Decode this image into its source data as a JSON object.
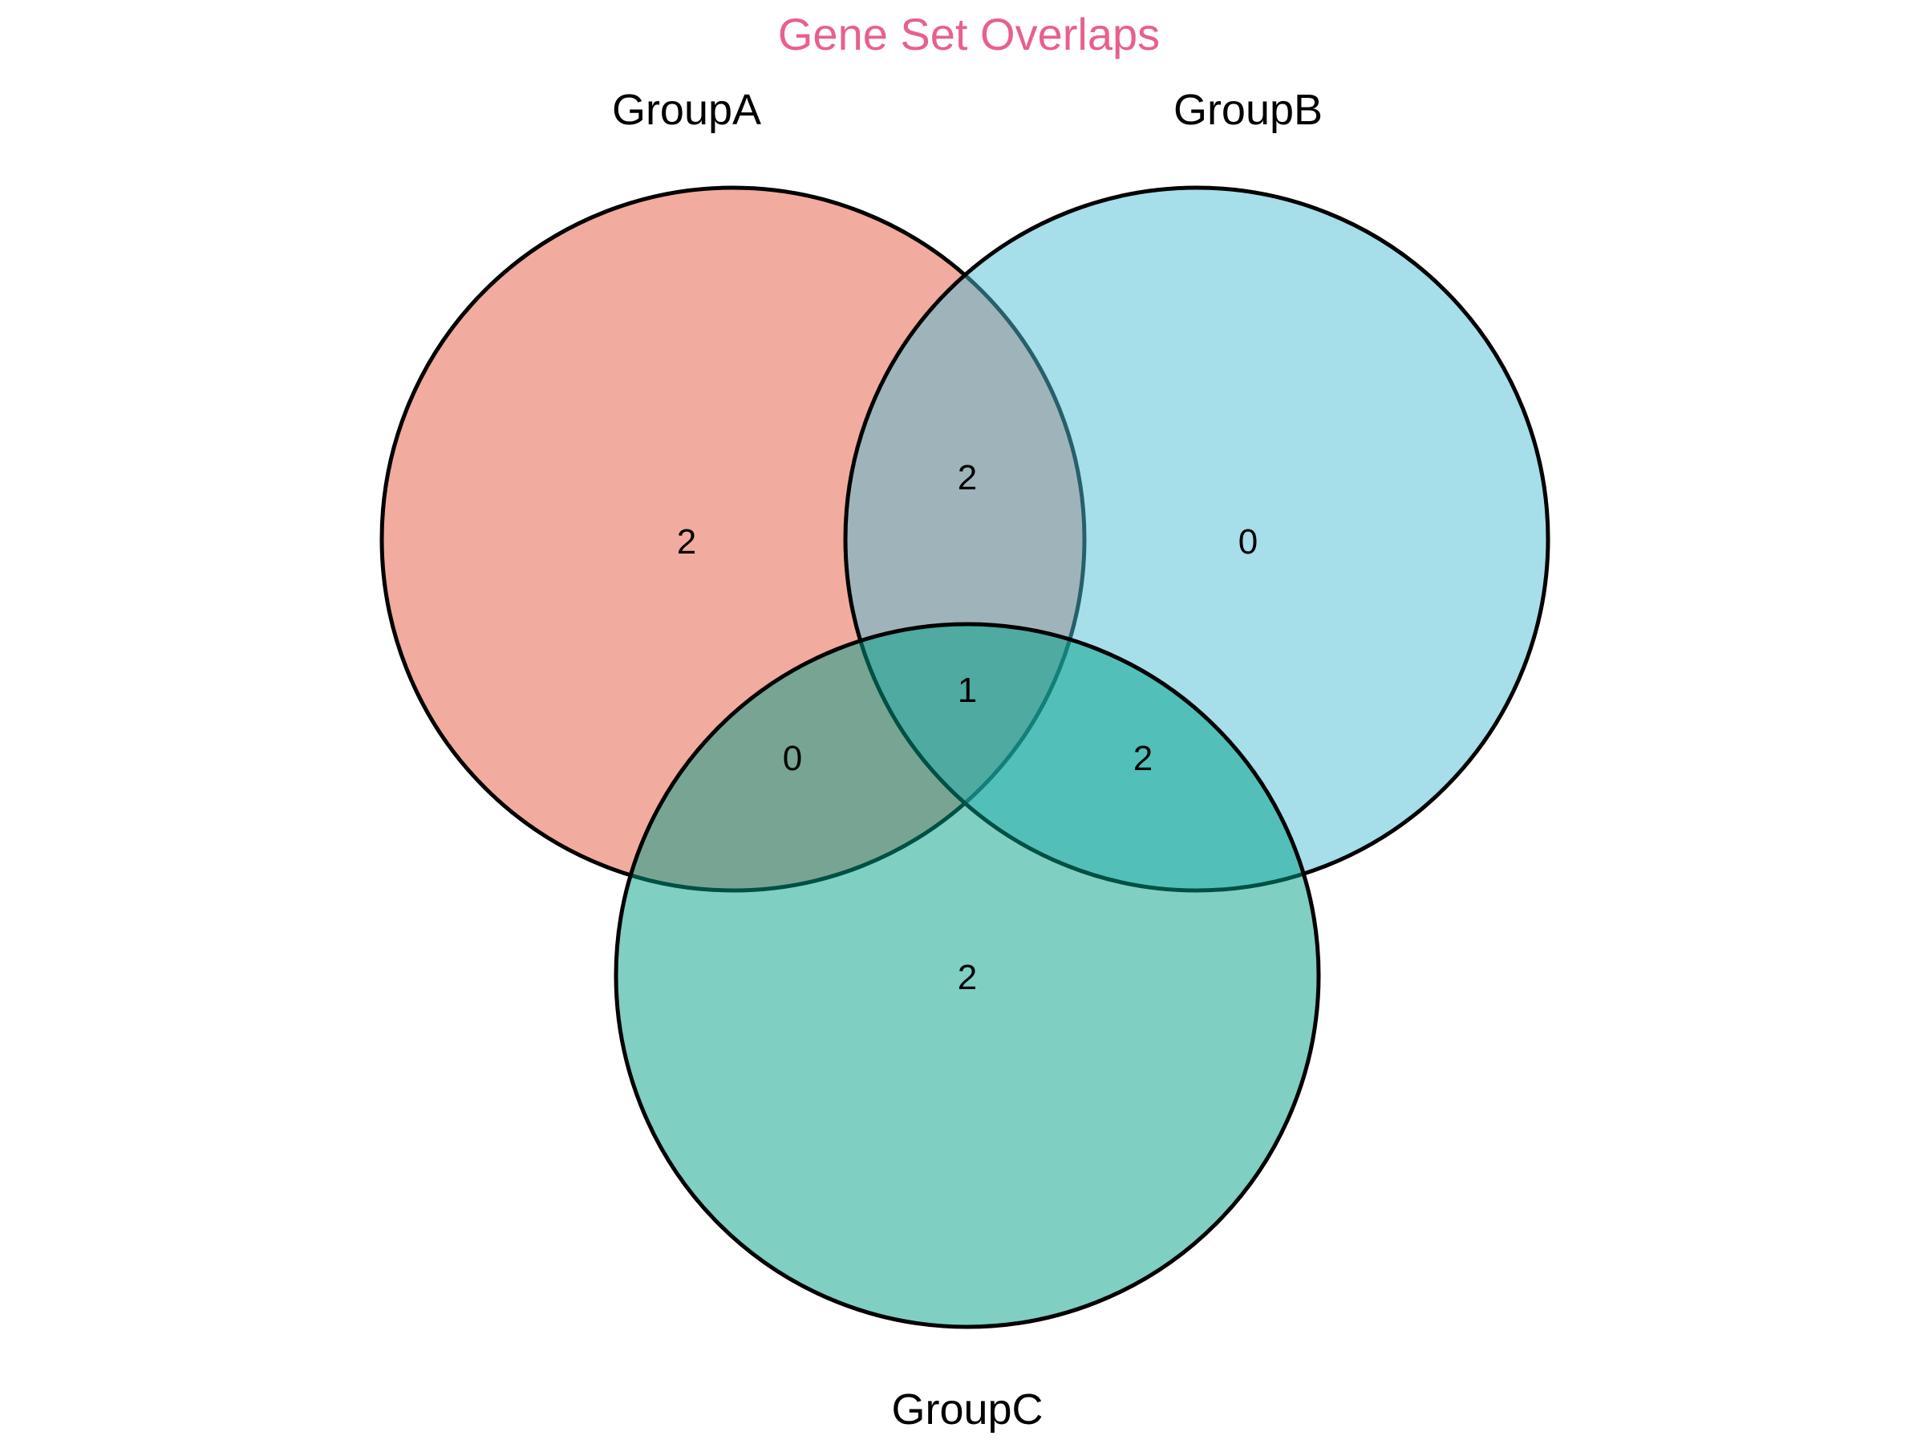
{
  "title": "Gene Set Overlaps",
  "title_color": "#E8608C",
  "sets": [
    {
      "name": "GroupA",
      "color": "#E8735F"
    },
    {
      "name": "GroupB",
      "color": "#4EBED6"
    },
    {
      "name": "GroupC",
      "color": "#00A087"
    }
  ],
  "regions": {
    "a_only": "2",
    "b_only": "0",
    "c_only": "2",
    "ab": "2",
    "ac": "0",
    "bc": "2",
    "abc": "1"
  }
}
